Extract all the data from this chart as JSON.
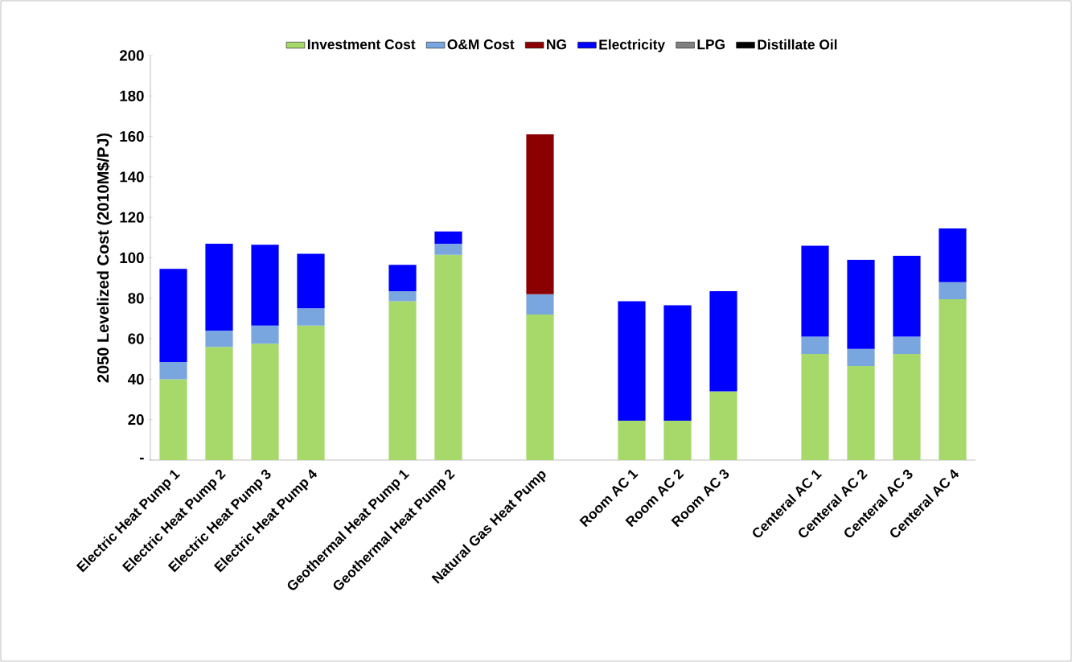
{
  "chart_data": {
    "type": "bar",
    "stacked": true,
    "ylabel": "2050 Levelized Cost  (2010M$/PJ)",
    "categories": [
      "Electric Heat Pump 1",
      "Electric Heat Pump 2",
      "Electric Heat Pump 3",
      "Electric Heat Pump 4",
      null,
      "Geothermal Heat Pump 1",
      "Geothermal Heat Pump 2",
      null,
      "Natural Gas Heat Pump",
      null,
      "Room AC 1",
      "Room AC 2",
      "Room AC 3",
      null,
      "Centeral AC 1",
      "Centeral AC 2",
      "Centeral AC 3",
      "Centeral AC 4"
    ],
    "series": [
      {
        "name": "Investment Cost",
        "color": "#a6d86a",
        "values": [
          40,
          56,
          57.5,
          66.5,
          null,
          78.5,
          101.5,
          null,
          72,
          null,
          19.5,
          19.5,
          34,
          null,
          52.5,
          46.5,
          52.5,
          79.5
        ]
      },
      {
        "name": "O&M Cost",
        "color": "#7aa6e0",
        "values": [
          8.5,
          8,
          9,
          8.5,
          null,
          5,
          5.5,
          null,
          10,
          null,
          null,
          null,
          null,
          null,
          8.5,
          8.5,
          8.5,
          8.5
        ]
      },
      {
        "name": "NG",
        "color": "#8b0000",
        "values": [
          null,
          null,
          null,
          null,
          null,
          null,
          null,
          null,
          79,
          null,
          null,
          null,
          null,
          null,
          null,
          null,
          null,
          null
        ]
      },
      {
        "name": "Electricity",
        "color": "#0000ff",
        "values": [
          46,
          43,
          40,
          27,
          null,
          13,
          6,
          null,
          null,
          null,
          59,
          57,
          49.5,
          null,
          45,
          44,
          40,
          26.5
        ]
      },
      {
        "name": "LPG",
        "color": "#808080",
        "values": [
          null,
          null,
          null,
          null,
          null,
          null,
          null,
          null,
          null,
          null,
          null,
          null,
          null,
          null,
          null,
          null,
          null,
          null
        ]
      },
      {
        "name": "Distillate Oil",
        "color": "#000000",
        "values": [
          null,
          null,
          null,
          null,
          null,
          null,
          null,
          null,
          null,
          null,
          null,
          null,
          null,
          null,
          null,
          null,
          null,
          null
        ]
      }
    ],
    "ylim": [
      0,
      200
    ],
    "yticks": [
      {
        "value": 0,
        "label": "-"
      },
      20,
      40,
      60,
      80,
      100,
      120,
      140,
      160,
      180,
      200
    ],
    "legend": "top",
    "grid": false
  }
}
